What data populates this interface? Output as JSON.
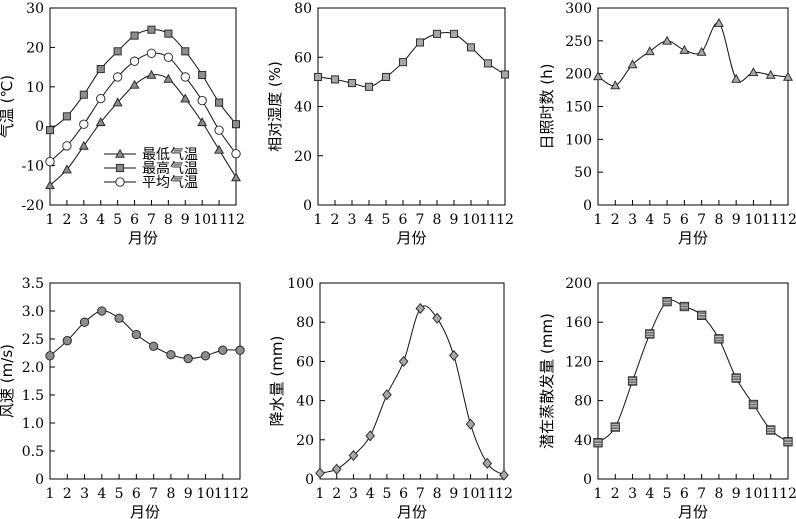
{
  "chart_data": [
    {
      "type": "line",
      "x": [
        1,
        2,
        3,
        4,
        5,
        6,
        7,
        8,
        9,
        10,
        11,
        12
      ],
      "xlabel": "月份",
      "ylabel": "气温 (℃)",
      "ylim": [
        -20,
        30
      ],
      "yticks": [
        -20,
        -10,
        0,
        10,
        20,
        30
      ],
      "legend_position": "lower-center",
      "series": [
        {
          "name": "最低气温",
          "marker": "triangle",
          "color": "#8c8c8c",
          "values": [
            -15,
            -11,
            -5,
            1,
            6,
            10.5,
            13,
            12,
            7,
            1,
            -6,
            -13
          ]
        },
        {
          "name": "最高气温",
          "marker": "square",
          "color": "#8c8c8c",
          "values": [
            -1,
            2.5,
            8,
            14.5,
            19,
            23,
            24.5,
            23.5,
            19,
            13,
            6,
            0.5
          ]
        },
        {
          "name": "平均气温",
          "marker": "circle-open",
          "color": "#ffffff",
          "values": [
            -9,
            -5,
            0.5,
            7,
            12.5,
            16.5,
            18.5,
            17.5,
            12.5,
            6.5,
            -1,
            -7
          ]
        }
      ]
    },
    {
      "type": "line",
      "x": [
        1,
        2,
        3,
        4,
        5,
        6,
        7,
        8,
        9,
        10,
        11,
        12
      ],
      "xlabel": "月份",
      "ylabel": "相对湿度 (%)",
      "ylim": [
        0,
        80
      ],
      "yticks": [
        0,
        20,
        40,
        60,
        80
      ],
      "series": [
        {
          "marker": "square",
          "color": "#a6a6a6",
          "values": [
            52,
            51,
            49.5,
            48,
            52,
            58,
            66,
            69.5,
            69.5,
            64,
            57.5,
            53
          ]
        }
      ]
    },
    {
      "type": "line",
      "x": [
        1,
        2,
        3,
        4,
        5,
        6,
        7,
        8,
        9,
        10,
        11,
        12
      ],
      "xlabel": "月份",
      "ylabel": "日照时数 (h)",
      "ylim": [
        0,
        300
      ],
      "yticks": [
        0,
        50,
        100,
        150,
        200,
        250,
        300
      ],
      "series": [
        {
          "marker": "triangle",
          "color": "#a6a6a6",
          "values": [
            196,
            182,
            214,
            234,
            250,
            236,
            233,
            277,
            192,
            202,
            198,
            195
          ]
        }
      ]
    },
    {
      "type": "line",
      "x": [
        1,
        2,
        3,
        4,
        5,
        6,
        7,
        8,
        9,
        10,
        11,
        12
      ],
      "xlabel": "月份",
      "ylabel": "风速 (m/s)",
      "ylim": [
        0,
        3.5
      ],
      "yticks": [
        0,
        0.5,
        1.0,
        1.5,
        2.0,
        2.5,
        3.0,
        3.5
      ],
      "ytick_labels": [
        "0",
        "0.5",
        "1.0",
        "1.5",
        "2.0",
        "2.5",
        "3.0",
        "3.5"
      ],
      "series": [
        {
          "marker": "circle",
          "color": "#8c8c8c",
          "values": [
            2.2,
            2.47,
            2.8,
            3.0,
            2.87,
            2.58,
            2.37,
            2.22,
            2.15,
            2.2,
            2.3,
            2.3
          ]
        }
      ]
    },
    {
      "type": "line",
      "x": [
        1,
        2,
        3,
        4,
        5,
        6,
        7,
        8,
        9,
        10,
        11,
        12
      ],
      "xlabel": "月份",
      "ylabel": "降水量 (mm)",
      "ylim": [
        0,
        100
      ],
      "yticks": [
        0,
        20,
        40,
        60,
        80,
        100
      ],
      "series": [
        {
          "marker": "diamond",
          "color": "#a6a6a6",
          "values": [
            3,
            5,
            12,
            22,
            43,
            60,
            87,
            82,
            63,
            28,
            8,
            2
          ]
        }
      ]
    },
    {
      "type": "line",
      "x": [
        1,
        2,
        3,
        4,
        5,
        6,
        7,
        8,
        9,
        10,
        11,
        12
      ],
      "xlabel": "月份",
      "ylabel": "潜在蒸散发量 (mm)",
      "ylim": [
        0,
        200
      ],
      "yticks": [
        0,
        40,
        80,
        120,
        160,
        200
      ],
      "series": [
        {
          "marker": "square-hatched",
          "color": "#c8c8c8",
          "values": [
            37,
            53,
            100,
            148,
            181,
            176,
            167,
            143,
            103,
            76,
            50,
            38
          ]
        }
      ]
    }
  ]
}
